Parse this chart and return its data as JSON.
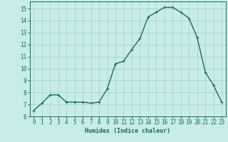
{
  "x": [
    0,
    1,
    2,
    3,
    4,
    5,
    6,
    7,
    8,
    9,
    10,
    11,
    12,
    13,
    14,
    15,
    16,
    17,
    18,
    19,
    20,
    21,
    22,
    23
  ],
  "y": [
    6.5,
    7.1,
    7.8,
    7.8,
    7.2,
    7.2,
    7.2,
    7.1,
    7.2,
    8.3,
    10.4,
    10.6,
    11.6,
    12.5,
    14.3,
    14.7,
    15.1,
    15.1,
    14.7,
    14.2,
    12.6,
    9.7,
    8.6,
    7.2
  ],
  "line_color": "#1a6b5a",
  "marker": "+",
  "marker_size": 3,
  "marker_linewidth": 0.7,
  "bg_color": "#c8ece9",
  "grid_color": "#9ecfca",
  "axis_color": "#1a6b5a",
  "tick_label_color": "#1a6b5a",
  "xlabel": "Humidex (Indice chaleur)",
  "xlabel_color": "#1a6b5a",
  "xlim": [
    -0.5,
    23.5
  ],
  "ylim": [
    6,
    15.6
  ],
  "yticks": [
    6,
    7,
    8,
    9,
    10,
    11,
    12,
    13,
    14,
    15
  ],
  "xticks": [
    0,
    1,
    2,
    3,
    4,
    5,
    6,
    7,
    8,
    9,
    10,
    11,
    12,
    13,
    14,
    15,
    16,
    17,
    18,
    19,
    20,
    21,
    22,
    23
  ],
  "line_width": 1.0,
  "tick_fontsize": 5.5,
  "xlabel_fontsize": 6.0
}
